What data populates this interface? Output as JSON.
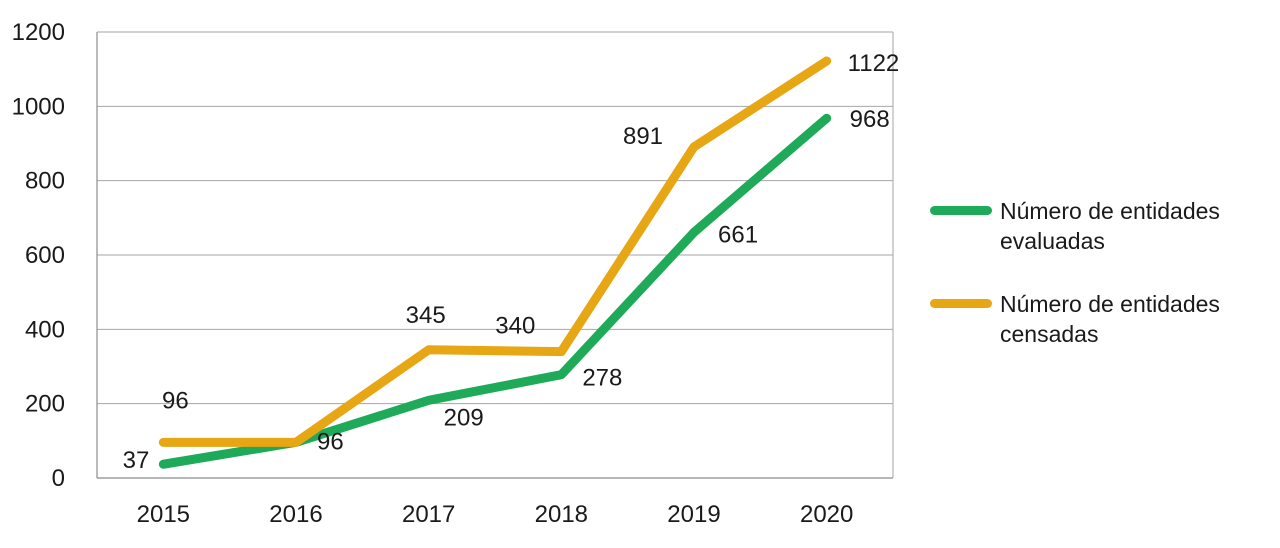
{
  "chart_data": {
    "type": "line",
    "title": "",
    "categories": [
      "2015",
      "2016",
      "2017",
      "2018",
      "2019",
      "2020"
    ],
    "series": [
      {
        "name": "Número de entidades evaluadas",
        "color": "#1faa59",
        "values": [
          37,
          96,
          209,
          278,
          661,
          968
        ],
        "labels": [
          "37",
          "96",
          "209",
          "278",
          "661",
          "968"
        ]
      },
      {
        "name": "Número de entidades censadas",
        "color": "#e7a614",
        "values": [
          96,
          96,
          345,
          340,
          891,
          1122
        ],
        "labels": [
          "96",
          "",
          "345",
          "340",
          "891",
          "1122"
        ]
      }
    ],
    "xlabel": "",
    "ylabel": "",
    "ylim": [
      0,
      1200
    ],
    "yticks": [
      0,
      200,
      400,
      600,
      800,
      1000,
      1200
    ],
    "grid": true,
    "legend_position": "right",
    "grid_color": "#a6a6a6",
    "axis_color": "#8c8c8c",
    "text_color": "#1a1a1a",
    "background": "#ffffff"
  },
  "legend": {
    "items": [
      {
        "label": "Número de entidades evaluadas"
      },
      {
        "label": "Número de entidades censadas"
      }
    ]
  }
}
